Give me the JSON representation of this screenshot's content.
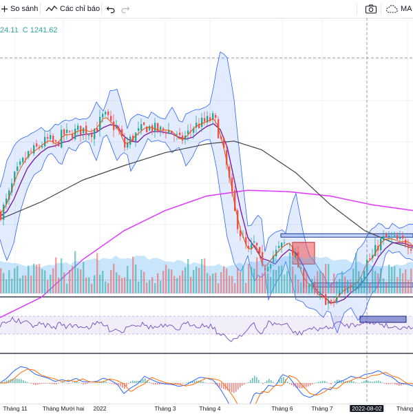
{
  "toolbar": {
    "compare_label": "So sánh",
    "indicators_label": "Các chỉ báo",
    "ma_label": "MA"
  },
  "legend": {
    "prefix": "24.11",
    "close": "C 1241.62"
  },
  "colors": {
    "up": "#26a69a",
    "down": "#ef5350",
    "bb": "#2962ff",
    "ma_short": "#e65100",
    "ma_mid": "#7b1fa2",
    "ma_long": "#424242",
    "ma_200": "#e040fb",
    "rsi": "#7e57c2",
    "macd": "#2962ff",
    "signal": "#ff6d00"
  },
  "chart_data": {
    "type": "line",
    "x_ticks": [
      "Tháng 11",
      "Tháng Mười hai",
      "2022",
      "Tháng 3",
      "Tháng 4",
      "Tháng 6",
      "Tháng 7",
      "2022-08-02",
      "Tháng"
    ],
    "highlighted_tick": "2022-08-02",
    "last_close": 1241.62,
    "price_shape": [
      [
        0,
        0.22
      ],
      [
        10,
        0.32
      ],
      [
        20,
        0.47
      ],
      [
        30,
        0.56
      ],
      [
        40,
        0.63
      ],
      [
        50,
        0.66
      ],
      [
        60,
        0.7
      ],
      [
        70,
        0.73
      ],
      [
        80,
        0.69
      ],
      [
        90,
        0.77
      ],
      [
        100,
        0.76
      ],
      [
        110,
        0.79
      ],
      [
        120,
        0.8
      ],
      [
        130,
        0.78
      ],
      [
        140,
        0.82
      ],
      [
        150,
        0.9
      ],
      [
        160,
        0.84
      ],
      [
        170,
        0.8
      ],
      [
        180,
        0.68
      ],
      [
        190,
        0.74
      ],
      [
        200,
        0.78
      ],
      [
        210,
        0.82
      ],
      [
        220,
        0.81
      ],
      [
        230,
        0.79
      ],
      [
        240,
        0.8
      ],
      [
        250,
        0.78
      ],
      [
        260,
        0.72
      ],
      [
        270,
        0.76
      ],
      [
        280,
        0.82
      ],
      [
        290,
        0.84
      ],
      [
        300,
        0.86
      ],
      [
        310,
        0.88
      ],
      [
        320,
        0.72
      ],
      [
        330,
        0.5
      ],
      [
        340,
        0.22
      ],
      [
        350,
        0.05
      ],
      [
        360,
        -0.05
      ],
      [
        370,
        0.02
      ],
      [
        380,
        -0.18
      ],
      [
        390,
        -0.1
      ],
      [
        400,
        -0.05
      ],
      [
        410,
        0.0
      ],
      [
        420,
        0.02
      ],
      [
        430,
        -0.12
      ],
      [
        440,
        -0.25
      ],
      [
        450,
        -0.28
      ],
      [
        460,
        -0.35
      ],
      [
        470,
        -0.36
      ],
      [
        480,
        -0.42
      ],
      [
        490,
        -0.34
      ],
      [
        500,
        -0.3
      ],
      [
        510,
        -0.28
      ],
      [
        520,
        -0.24
      ],
      [
        530,
        -0.12
      ],
      [
        540,
        -0.08
      ],
      [
        550,
        0.02
      ],
      [
        560,
        0.05
      ],
      [
        570,
        0.04
      ],
      [
        580,
        0.02
      ],
      [
        590,
        0.03
      ],
      [
        600,
        -0.02
      ]
    ],
    "ma_long_shape": [
      [
        0,
        0.18
      ],
      [
        60,
        0.3
      ],
      [
        120,
        0.45
      ],
      [
        180,
        0.55
      ],
      [
        240,
        0.64
      ],
      [
        300,
        0.7
      ],
      [
        340,
        0.72
      ],
      [
        380,
        0.66
      ],
      [
        430,
        0.5
      ],
      [
        480,
        0.28
      ],
      [
        530,
        0.1
      ],
      [
        570,
        0.02
      ],
      [
        600,
        -0.02
      ]
    ],
    "ma_200_shape": [
      [
        0,
        -0.5
      ],
      [
        60,
        -0.36
      ],
      [
        120,
        -0.1
      ],
      [
        180,
        0.1
      ],
      [
        240,
        0.24
      ],
      [
        300,
        0.34
      ],
      [
        360,
        0.38
      ],
      [
        420,
        0.37
      ],
      [
        480,
        0.34
      ],
      [
        540,
        0.28
      ],
      [
        600,
        0.24
      ]
    ],
    "levels": [
      {
        "name": "resistance-zone-top",
        "value": 0.07
      },
      {
        "name": "support-zone-bottom",
        "value": -0.27
      },
      {
        "name": "dotted-reference",
        "value": -0.24
      }
    ],
    "boxes": [
      {
        "name": "red-box",
        "from": 425,
        "to": 457,
        "top": 0.02,
        "bottom": -0.13
      },
      {
        "name": "rsi-box",
        "from": 523,
        "to": 590
      }
    ],
    "rsi_band": [
      30,
      70
    ],
    "grid": true,
    "legend_placement": "top-left"
  }
}
